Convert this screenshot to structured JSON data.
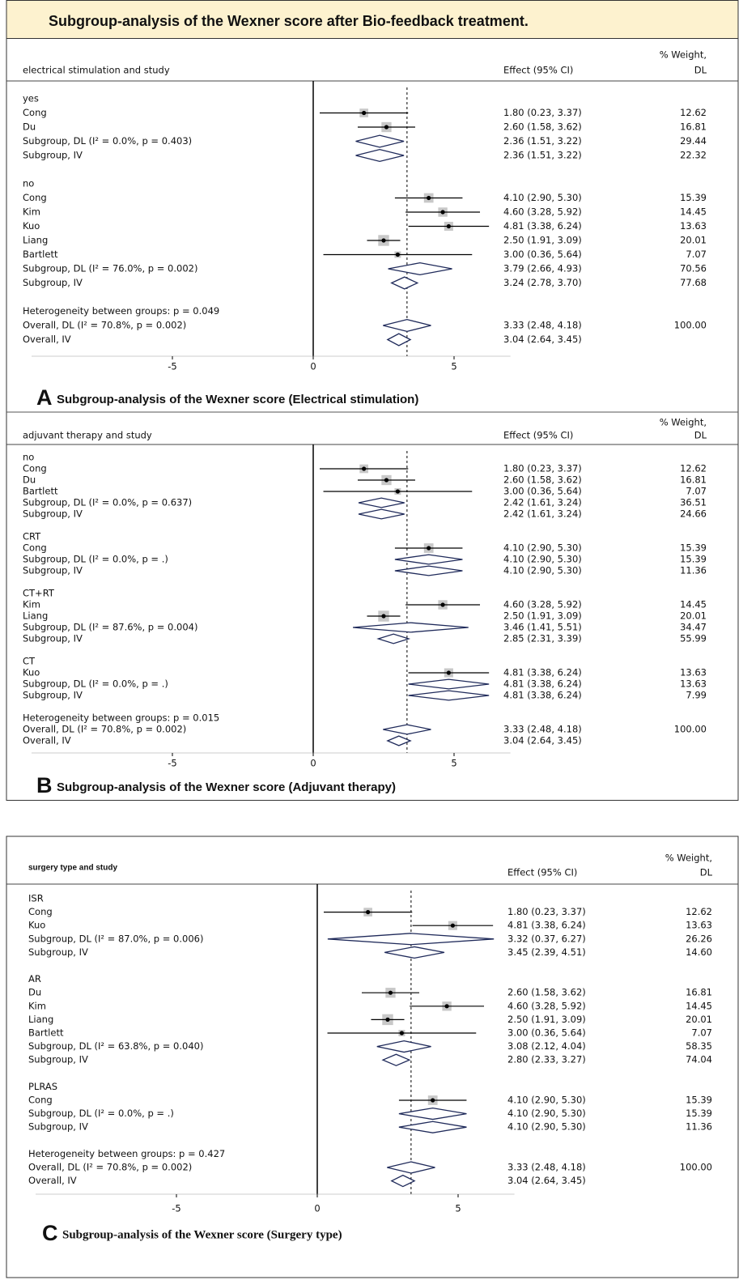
{
  "title": "Subgroup-analysis of the Wexner score after Bio-feedback treatment.",
  "chart_data": [
    {
      "type": "forest",
      "label": "A",
      "caption": "Subgroup-analysis of the Wexner score (Electrical stimulation)",
      "columns": {
        "study": "electrical stimulation and study",
        "effect": "Effect (95% CI)",
        "weight": [
          "% Weight,",
          "DL"
        ]
      },
      "xlim": [
        -10,
        7
      ],
      "xticks": [
        -5,
        0,
        5
      ],
      "rows": [
        {
          "kind": "group",
          "label": "yes"
        },
        {
          "kind": "study",
          "label": "Cong",
          "effect": 1.8,
          "lo": 0.23,
          "hi": 3.37,
          "ci_label": "1.80 (0.23, 3.37)",
          "weight": 12.62
        },
        {
          "kind": "study",
          "label": "Du",
          "effect": 2.6,
          "lo": 1.58,
          "hi": 3.62,
          "ci_label": "2.60 (1.58, 3.62)",
          "weight": 16.81
        },
        {
          "kind": "subgroup",
          "label": "Subgroup, DL (I² = 0.0%, p = 0.403)",
          "effect": 2.36,
          "lo": 1.51,
          "hi": 3.22,
          "ci_label": "2.36 (1.51, 3.22)",
          "weight": 29.44
        },
        {
          "kind": "subgroup",
          "label": "Subgroup, IV",
          "effect": 2.36,
          "lo": 1.51,
          "hi": 3.22,
          "ci_label": "2.36 (1.51, 3.22)",
          "weight": 22.32
        },
        {
          "kind": "group",
          "label": "no"
        },
        {
          "kind": "study",
          "label": "Cong",
          "effect": 4.1,
          "lo": 2.9,
          "hi": 5.3,
          "ci_label": "4.10 (2.90, 5.30)",
          "weight": 15.39
        },
        {
          "kind": "study",
          "label": "Kim",
          "effect": 4.6,
          "lo": 3.28,
          "hi": 5.92,
          "ci_label": "4.60 (3.28, 5.92)",
          "weight": 14.45
        },
        {
          "kind": "study",
          "label": "Kuo",
          "effect": 4.81,
          "lo": 3.38,
          "hi": 6.24,
          "ci_label": "4.81 (3.38, 6.24)",
          "weight": 13.63
        },
        {
          "kind": "study",
          "label": "Liang",
          "effect": 2.5,
          "lo": 1.91,
          "hi": 3.09,
          "ci_label": "2.50 (1.91, 3.09)",
          "weight": 20.01
        },
        {
          "kind": "study",
          "label": "Bartlett",
          "effect": 3.0,
          "lo": 0.36,
          "hi": 5.64,
          "ci_label": "3.00 (0.36, 5.64)",
          "weight": 7.07
        },
        {
          "kind": "subgroup",
          "label": "Subgroup, DL (I² = 76.0%, p = 0.002)",
          "effect": 3.79,
          "lo": 2.66,
          "hi": 4.93,
          "ci_label": "3.79 (2.66, 4.93)",
          "weight": 70.56
        },
        {
          "kind": "subgroup",
          "label": "Subgroup, IV",
          "effect": 3.24,
          "lo": 2.78,
          "hi": 3.7,
          "ci_label": "3.24 (2.78, 3.70)",
          "weight": 77.68
        },
        {
          "kind": "note",
          "label": "Heterogeneity between groups: p = 0.049"
        },
        {
          "kind": "overall",
          "label": "Overall, DL (I² = 70.8%, p = 0.002)",
          "effect": 3.33,
          "lo": 2.48,
          "hi": 4.18,
          "ci_label": "3.33 (2.48, 4.18)",
          "weight": 100,
          "weight_label": "100.00"
        },
        {
          "kind": "overall",
          "label": "Overall, IV",
          "effect": 3.04,
          "lo": 2.64,
          "hi": 3.45,
          "ci_label": "3.04 (2.64, 3.45)"
        }
      ]
    },
    {
      "type": "forest",
      "label": "B",
      "caption": "Subgroup-analysis of the Wexner score (Adjuvant therapy)",
      "columns": {
        "study": "adjuvant therapy and study",
        "effect": "Effect (95% CI)",
        "weight": [
          "% Weight,",
          "DL"
        ]
      },
      "xlim": [
        -10,
        7
      ],
      "xticks": [
        -5,
        0,
        5
      ],
      "rows": [
        {
          "kind": "group",
          "label": "no"
        },
        {
          "kind": "study",
          "label": "Cong",
          "effect": 1.8,
          "lo": 0.23,
          "hi": 3.37,
          "ci_label": "1.80 (0.23, 3.37)",
          "weight": 12.62
        },
        {
          "kind": "study",
          "label": "Du",
          "effect": 2.6,
          "lo": 1.58,
          "hi": 3.62,
          "ci_label": "2.60 (1.58, 3.62)",
          "weight": 16.81
        },
        {
          "kind": "study",
          "label": "Bartlett",
          "effect": 3.0,
          "lo": 0.36,
          "hi": 5.64,
          "ci_label": "3.00 (0.36, 5.64)",
          "weight": 7.07
        },
        {
          "kind": "subgroup",
          "label": "Subgroup, DL (I² = 0.0%, p = 0.637)",
          "effect": 2.42,
          "lo": 1.61,
          "hi": 3.24,
          "ci_label": "2.42 (1.61, 3.24)",
          "weight": 36.51
        },
        {
          "kind": "subgroup",
          "label": "Subgroup, IV",
          "effect": 2.42,
          "lo": 1.61,
          "hi": 3.24,
          "ci_label": "2.42 (1.61, 3.24)",
          "weight": 24.66
        },
        {
          "kind": "group",
          "label": "CRT"
        },
        {
          "kind": "study",
          "label": "Cong",
          "effect": 4.1,
          "lo": 2.9,
          "hi": 5.3,
          "ci_label": "4.10 (2.90, 5.30)",
          "weight": 15.39
        },
        {
          "kind": "subgroup",
          "label": "Subgroup, DL (I² = 0.0%, p = .)",
          "effect": 4.1,
          "lo": 2.9,
          "hi": 5.3,
          "ci_label": "4.10 (2.90, 5.30)",
          "weight": 15.39
        },
        {
          "kind": "subgroup",
          "label": "Subgroup, IV",
          "effect": 4.1,
          "lo": 2.9,
          "hi": 5.3,
          "ci_label": "4.10 (2.90, 5.30)",
          "weight": 11.36
        },
        {
          "kind": "group",
          "label": "CT+RT"
        },
        {
          "kind": "study",
          "label": "Kim",
          "effect": 4.6,
          "lo": 3.28,
          "hi": 5.92,
          "ci_label": "4.60 (3.28, 5.92)",
          "weight": 14.45
        },
        {
          "kind": "study",
          "label": "Liang",
          "effect": 2.5,
          "lo": 1.91,
          "hi": 3.09,
          "ci_label": "2.50 (1.91, 3.09)",
          "weight": 20.01
        },
        {
          "kind": "subgroup",
          "label": "Subgroup, DL (I² = 87.6%, p = 0.004)",
          "effect": 3.46,
          "lo": 1.41,
          "hi": 5.51,
          "ci_label": "3.46 (1.41, 5.51)",
          "weight": 34.47
        },
        {
          "kind": "subgroup",
          "label": "Subgroup, IV",
          "effect": 2.85,
          "lo": 2.31,
          "hi": 3.39,
          "ci_label": "2.85 (2.31, 3.39)",
          "weight": 55.99
        },
        {
          "kind": "group",
          "label": "CT"
        },
        {
          "kind": "study",
          "label": "Kuo",
          "effect": 4.81,
          "lo": 3.38,
          "hi": 6.24,
          "ci_label": "4.81 (3.38, 6.24)",
          "weight": 13.63
        },
        {
          "kind": "subgroup",
          "label": "Subgroup, DL (I² = 0.0%, p = .)",
          "effect": 4.81,
          "lo": 3.38,
          "hi": 6.24,
          "ci_label": "4.81 (3.38, 6.24)",
          "weight": 13.63
        },
        {
          "kind": "subgroup",
          "label": "Subgroup, IV",
          "effect": 4.81,
          "lo": 3.38,
          "hi": 6.24,
          "ci_label": "4.81 (3.38, 6.24)",
          "weight": 7.99
        },
        {
          "kind": "note",
          "label": "Heterogeneity between groups: p = 0.015"
        },
        {
          "kind": "overall",
          "label": "Overall, DL (I² = 70.8%, p = 0.002)",
          "effect": 3.33,
          "lo": 2.48,
          "hi": 4.18,
          "ci_label": "3.33 (2.48, 4.18)",
          "weight": 100,
          "weight_label": "100.00"
        },
        {
          "kind": "overall",
          "label": "Overall, IV",
          "effect": 3.04,
          "lo": 2.64,
          "hi": 3.45,
          "ci_label": "3.04 (2.64, 3.45)"
        }
      ]
    },
    {
      "type": "forest",
      "label": "C",
      "caption": "Subgroup-analysis of the Wexner score (Surgery type)",
      "columns": {
        "study": "surgery type and study",
        "effect": "Effect (95% CI)",
        "weight": [
          "% Weight,",
          "DL"
        ]
      },
      "xlim": [
        -10,
        7
      ],
      "xticks": [
        -5,
        0,
        5
      ],
      "rows": [
        {
          "kind": "group",
          "label": "ISR"
        },
        {
          "kind": "study",
          "label": "Cong",
          "effect": 1.8,
          "lo": 0.23,
          "hi": 3.37,
          "ci_label": "1.80 (0.23, 3.37)",
          "weight": 12.62
        },
        {
          "kind": "study",
          "label": "Kuo",
          "effect": 4.81,
          "lo": 3.38,
          "hi": 6.24,
          "ci_label": "4.81 (3.38, 6.24)",
          "weight": 13.63
        },
        {
          "kind": "subgroup",
          "label": "Subgroup, DL (I² = 87.0%, p = 0.006)",
          "effect": 3.32,
          "lo": 0.37,
          "hi": 6.27,
          "ci_label": "3.32 (0.37, 6.27)",
          "weight": 26.26
        },
        {
          "kind": "subgroup",
          "label": "Subgroup, IV",
          "effect": 3.45,
          "lo": 2.39,
          "hi": 4.51,
          "ci_label": "3.45 (2.39, 4.51)",
          "weight": 14.6,
          "weight_label": "14.60"
        },
        {
          "kind": "group",
          "label": "AR"
        },
        {
          "kind": "study",
          "label": "Du",
          "effect": 2.6,
          "lo": 1.58,
          "hi": 3.62,
          "ci_label": "2.60 (1.58, 3.62)",
          "weight": 16.81
        },
        {
          "kind": "study",
          "label": "Kim",
          "effect": 4.6,
          "lo": 3.28,
          "hi": 5.92,
          "ci_label": "4.60 (3.28, 5.92)",
          "weight": 14.45
        },
        {
          "kind": "study",
          "label": "Liang",
          "effect": 2.5,
          "lo": 1.91,
          "hi": 3.09,
          "ci_label": "2.50 (1.91, 3.09)",
          "weight": 20.01
        },
        {
          "kind": "study",
          "label": "Bartlett",
          "effect": 3.0,
          "lo": 0.36,
          "hi": 5.64,
          "ci_label": "3.00 (0.36, 5.64)",
          "weight": 7.07
        },
        {
          "kind": "subgroup",
          "label": "Subgroup, DL (I² = 63.8%, p = 0.040)",
          "effect": 3.08,
          "lo": 2.12,
          "hi": 4.04,
          "ci_label": "3.08 (2.12, 4.04)",
          "weight": 58.35
        },
        {
          "kind": "subgroup",
          "label": "Subgroup, IV",
          "effect": 2.8,
          "lo": 2.33,
          "hi": 3.27,
          "ci_label": "2.80 (2.33, 3.27)",
          "weight": 74.04
        },
        {
          "kind": "group",
          "label": "PLRAS"
        },
        {
          "kind": "study",
          "label": "Cong",
          "effect": 4.1,
          "lo": 2.9,
          "hi": 5.3,
          "ci_label": "4.10 (2.90, 5.30)",
          "weight": 15.39
        },
        {
          "kind": "subgroup",
          "label": "Subgroup, DL (I² = 0.0%, p = .)",
          "effect": 4.1,
          "lo": 2.9,
          "hi": 5.3,
          "ci_label": "4.10 (2.90, 5.30)",
          "weight": 15.39
        },
        {
          "kind": "subgroup",
          "label": "Subgroup, IV",
          "effect": 4.1,
          "lo": 2.9,
          "hi": 5.3,
          "ci_label": "4.10 (2.90, 5.30)",
          "weight": 11.36
        },
        {
          "kind": "note",
          "label": "Heterogeneity between groups: p = 0.427"
        },
        {
          "kind": "overall",
          "label": "Overall, DL (I² = 70.8%, p = 0.002)",
          "effect": 3.33,
          "lo": 2.48,
          "hi": 4.18,
          "ci_label": "3.33 (2.48, 4.18)",
          "weight": 100,
          "weight_label": "100.00"
        },
        {
          "kind": "overall",
          "label": "Overall, IV",
          "effect": 3.04,
          "lo": 2.64,
          "hi": 3.45,
          "ci_label": "3.04 (2.64, 3.45)"
        }
      ]
    }
  ]
}
